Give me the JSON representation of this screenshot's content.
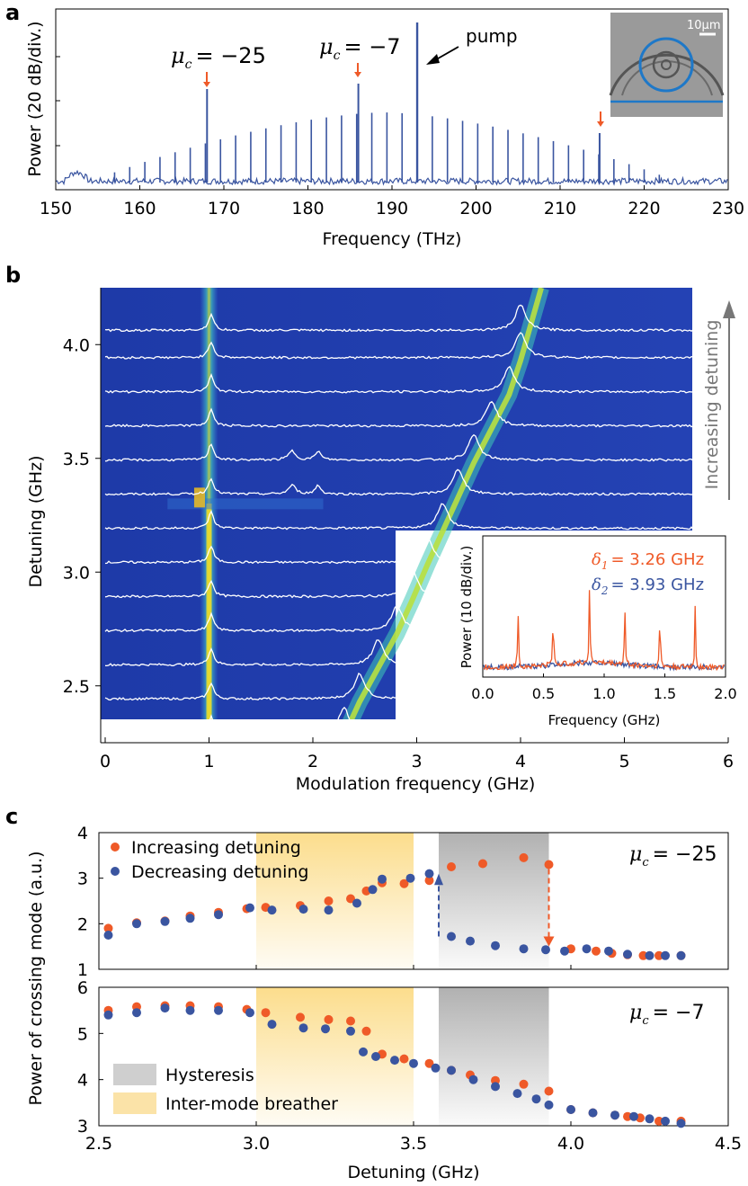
{
  "panel_labels": {
    "a": "a",
    "b": "b",
    "c": "c"
  },
  "colors": {
    "blue": "#3a55a0",
    "orange": "#ef5a28",
    "gray_shade": "#b5b5b5",
    "yellow_shade": "#fbd778",
    "heat_low": "#1a2f9c",
    "heat_high": "#f8e020"
  },
  "chart_data": [
    {
      "id": "a",
      "type": "line",
      "title": "",
      "xlabel": "Frequency (THz)",
      "ylabel": "Power (20 dB/div.)",
      "xlim": [
        150,
        230
      ],
      "xticks": [
        "150",
        "160",
        "170",
        "180",
        "190",
        "200",
        "210",
        "220",
        "230"
      ],
      "pump_frequency": 193,
      "comb_line_spacing": 1.8,
      "comb_first_line": 157,
      "comb_last_line": 222,
      "series_color": "#3a55a0",
      "annotations": [
        {
          "text_prefix": "μ",
          "text_sub": "c",
          "text": "= −25",
          "x": 168
        },
        {
          "text_prefix": "μ",
          "text_sub": "c",
          "text": "= −7",
          "x": 186
        },
        {
          "text": "pump",
          "x": 193
        },
        {
          "text": "",
          "x": 214.7
        }
      ],
      "inset": {
        "scale_label": "10μm"
      }
    },
    {
      "id": "b",
      "type": "heatmap",
      "xlabel": "Modulation frequency (GHz)",
      "ylabel": "Detuning (GHz)",
      "xlim": [
        0,
        6
      ],
      "ylim": [
        2.25,
        4.25
      ],
      "xticks": [
        "0",
        "1",
        "2",
        "3",
        "4",
        "5",
        "6"
      ],
      "yticks": [
        "2.5",
        "3.0",
        "3.5",
        "4.0"
      ],
      "side_label": "Increasing detuning",
      "trace_detunings": [
        2.28,
        2.43,
        2.58,
        2.73,
        2.88,
        3.03,
        3.18,
        3.33,
        3.48,
        3.63,
        3.78,
        3.93,
        4.05
      ],
      "breathing_peak_freqs": [
        2.3,
        2.45,
        2.63,
        2.81,
        2.96,
        3.1,
        3.25,
        3.4,
        3.55,
        3.72,
        3.89,
        4.0
      ],
      "inset": {
        "type": "line",
        "xlabel": "Frequency (GHz)",
        "ylabel": "Power (10 dB/div.)",
        "xlim": [
          0,
          2
        ],
        "xticks": [
          "0.0",
          "0.5",
          "1.0",
          "1.5",
          "2.0"
        ],
        "series": [
          {
            "name": "δ1",
            "sym": "δ",
            "sub": "1",
            "label": "= 3.26 GHz",
            "color": "#ef5a28",
            "peaks": [
              0.29,
              0.58,
              0.88,
              1.17,
              1.46,
              1.75
            ]
          },
          {
            "name": "δ2",
            "sym": "δ",
            "sub": "2",
            "label": "= 3.93 GHz",
            "color": "#3a55a0",
            "peaks": [
              0.88
            ]
          }
        ]
      }
    },
    {
      "id": "c-top",
      "type": "scatter",
      "xlim": [
        2.5,
        4.5
      ],
      "ylim": [
        1,
        4
      ],
      "yticks": [
        "1",
        "2",
        "3",
        "4"
      ],
      "annotation_prefix": "μ",
      "annotation_sub": "c",
      "annotation": "= −25",
      "series": [
        {
          "name": "Increasing detuning",
          "color": "#ef5a28",
          "x": [
            2.53,
            2.62,
            2.71,
            2.79,
            2.88,
            2.97,
            3.03,
            3.14,
            3.23,
            3.3,
            3.35,
            3.4,
            3.47,
            3.55,
            3.62,
            3.72,
            3.85,
            3.93,
            4.0,
            4.08,
            4.13,
            4.18,
            4.23,
            4.28,
            4.35
          ],
          "y": [
            1.9,
            2.02,
            2.06,
            2.17,
            2.25,
            2.33,
            2.36,
            2.4,
            2.5,
            2.55,
            2.72,
            2.9,
            2.88,
            2.95,
            3.25,
            3.32,
            3.45,
            3.3,
            1.45,
            1.4,
            1.35,
            1.32,
            1.3,
            1.3,
            1.3
          ]
        },
        {
          "name": "Decreasing detuning",
          "color": "#3a55a0",
          "x": [
            2.53,
            2.62,
            2.71,
            2.79,
            2.88,
            2.98,
            3.05,
            3.15,
            3.23,
            3.32,
            3.37,
            3.4,
            3.49,
            3.55,
            3.62,
            3.68,
            3.76,
            3.85,
            3.92,
            3.98,
            4.05,
            4.12,
            4.18,
            4.25,
            4.3,
            4.35
          ],
          "y": [
            1.75,
            2.0,
            2.05,
            2.12,
            2.2,
            2.35,
            2.3,
            2.32,
            2.3,
            2.45,
            2.75,
            2.98,
            3.0,
            3.1,
            1.72,
            1.62,
            1.52,
            1.45,
            1.43,
            1.4,
            1.45,
            1.4,
            1.33,
            1.3,
            1.3,
            1.3
          ]
        }
      ],
      "hysteresis_up_x": 3.58,
      "hysteresis_down_x": 3.93
    },
    {
      "id": "c-bottom",
      "type": "scatter",
      "xlabel": "Detuning (GHz)",
      "ylabel": "Power of crossing mode (a.u.)",
      "xlim": [
        2.5,
        4.5
      ],
      "ylim": [
        3,
        6
      ],
      "xticks": [
        "2.5",
        "3.0",
        "3.5",
        "4.0",
        "4.5"
      ],
      "yticks": [
        "3",
        "4",
        "5",
        "6"
      ],
      "annotation_prefix": "μ",
      "annotation_sub": "c",
      "annotation": "= −7",
      "series": [
        {
          "name": "Increasing detuning",
          "color": "#ef5a28",
          "x": [
            2.53,
            2.62,
            2.71,
            2.79,
            2.88,
            2.97,
            3.03,
            3.14,
            3.23,
            3.3,
            3.35,
            3.4,
            3.47,
            3.55,
            3.62,
            3.68,
            3.76,
            3.85,
            3.93,
            4.0,
            4.07,
            4.14,
            4.18,
            4.22,
            4.28,
            4.35
          ],
          "y": [
            5.5,
            5.58,
            5.6,
            5.6,
            5.58,
            5.52,
            5.45,
            5.35,
            5.3,
            5.27,
            5.05,
            4.55,
            4.45,
            4.35,
            4.2,
            4.1,
            3.98,
            3.9,
            3.75,
            3.35,
            3.28,
            3.23,
            3.2,
            3.17,
            3.1,
            3.1
          ]
        },
        {
          "name": "Decreasing detuning",
          "color": "#3a55a0",
          "x": [
            2.53,
            2.62,
            2.71,
            2.79,
            2.88,
            2.98,
            3.05,
            3.15,
            3.22,
            3.3,
            3.34,
            3.38,
            3.44,
            3.5,
            3.57,
            3.62,
            3.69,
            3.76,
            3.83,
            3.89,
            3.93,
            4.0,
            4.07,
            4.14,
            4.2,
            4.25,
            4.3,
            4.35
          ],
          "y": [
            5.4,
            5.45,
            5.55,
            5.5,
            5.5,
            5.45,
            5.2,
            5.12,
            5.1,
            5.05,
            4.6,
            4.5,
            4.42,
            4.35,
            4.25,
            4.2,
            4.0,
            3.85,
            3.7,
            3.58,
            3.45,
            3.35,
            3.28,
            3.23,
            3.2,
            3.15,
            3.1,
            3.05
          ]
        }
      ]
    }
  ],
  "legend_c": {
    "increasing": "Increasing detuning",
    "decreasing": "Decreasing detuning",
    "hysteresis": "Hysteresis",
    "breather": "Inter-mode breather"
  },
  "regions_c": {
    "breather": [
      3.0,
      3.5
    ],
    "hysteresis": [
      3.58,
      3.93
    ]
  }
}
